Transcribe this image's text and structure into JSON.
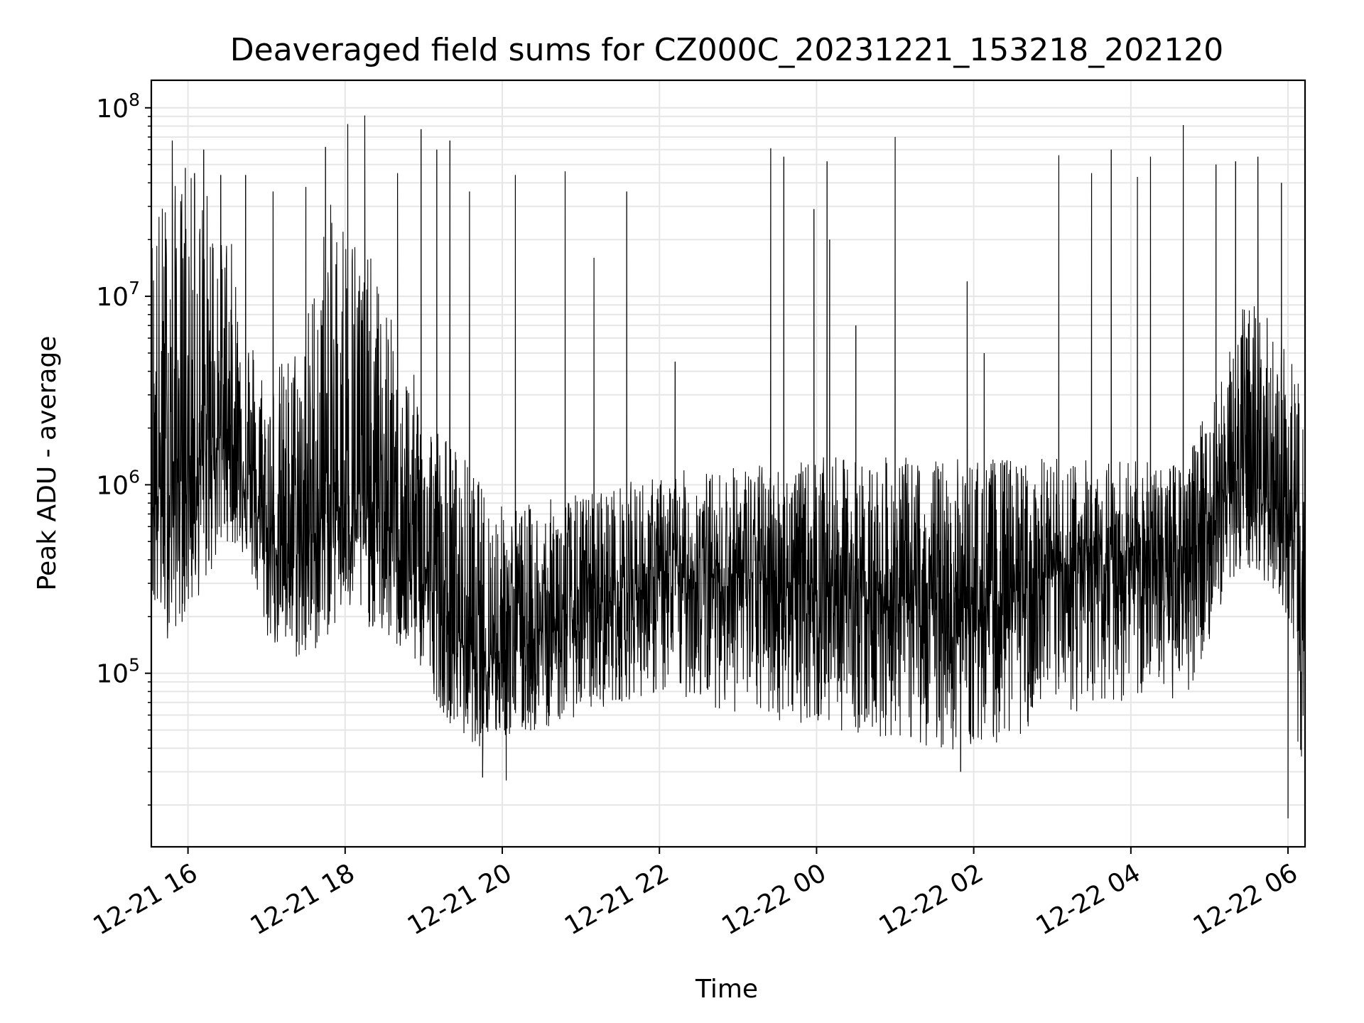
{
  "chart_data": {
    "type": "line",
    "title": "Deaveraged field sums for CZ000C_20231221_153218_202120",
    "xlabel": "Time",
    "ylabel": "Peak ADU - average",
    "yscale": "log",
    "ylim": [
      12000,
      140000000
    ],
    "xlim": [
      "2023-12-21 15:32",
      "2023-12-22 06:13"
    ],
    "grid": true,
    "line_color": "#000000",
    "grid_color": "#e6e6e6",
    "x_ticks": [
      "12-21 16",
      "12-21 18",
      "12-21 20",
      "12-21 22",
      "12-22 00",
      "12-22 02",
      "12-22 04",
      "12-22 06"
    ],
    "y_ticks": [
      {
        "base": "10",
        "exp": "5",
        "value": 100000
      },
      {
        "base": "10",
        "exp": "6",
        "value": 1000000
      },
      {
        "base": "10",
        "exp": "7",
        "value": 10000000
      },
      {
        "base": "10",
        "exp": "8",
        "value": 100000000
      }
    ],
    "series": [
      {
        "x": [
          "2023-12-21 15:32",
          "2023-12-21 15:45",
          "2023-12-21 16:00",
          "2023-12-21 16:15",
          "2023-12-21 16:30",
          "2023-12-21 16:45",
          "2023-12-21 17:00",
          "2023-12-21 17:15",
          "2023-12-21 17:30",
          "2023-12-21 17:45",
          "2023-12-21 18:00",
          "2023-12-21 18:15",
          "2023-12-21 18:30",
          "2023-12-21 18:45",
          "2023-12-21 19:00",
          "2023-12-21 19:15",
          "2023-12-21 19:30",
          "2023-12-21 19:45",
          "2023-12-21 20:00",
          "2023-12-21 20:15",
          "2023-12-21 20:30",
          "2023-12-21 20:45",
          "2023-12-21 21:00",
          "2023-12-21 21:15",
          "2023-12-21 21:30",
          "2023-12-21 21:45",
          "2023-12-21 22:00",
          "2023-12-21 22:15",
          "2023-12-21 22:30",
          "2023-12-21 22:45",
          "2023-12-21 23:00",
          "2023-12-21 23:15",
          "2023-12-21 23:30",
          "2023-12-21 23:45",
          "2023-12-22 00:00",
          "2023-12-22 00:15",
          "2023-12-22 00:30",
          "2023-12-22 00:45",
          "2023-12-22 01:00",
          "2023-12-22 01:15",
          "2023-12-22 01:30",
          "2023-12-22 01:45",
          "2023-12-22 02:00",
          "2023-12-22 02:15",
          "2023-12-22 02:30",
          "2023-12-22 02:45",
          "2023-12-22 03:00",
          "2023-12-22 03:15",
          "2023-12-22 03:30",
          "2023-12-22 03:45",
          "2023-12-22 04:00",
          "2023-12-22 04:15",
          "2023-12-22 04:30",
          "2023-12-22 04:45",
          "2023-12-22 05:00",
          "2023-12-22 05:15",
          "2023-12-22 05:30",
          "2023-12-22 05:45",
          "2023-12-22 06:00",
          "2023-12-22 06:10"
        ],
        "median": [
          900000,
          1000000,
          1100000,
          1500000,
          2000000,
          1000000,
          500000,
          450000,
          450000,
          700000,
          800000,
          700000,
          600000,
          500000,
          350000,
          200000,
          150000,
          130000,
          140000,
          150000,
          160000,
          180000,
          200000,
          230000,
          260000,
          280000,
          300000,
          320000,
          320000,
          330000,
          330000,
          320000,
          310000,
          300000,
          290000,
          280000,
          270000,
          260000,
          250000,
          240000,
          230000,
          220000,
          220000,
          230000,
          250000,
          280000,
          320000,
          350000,
          380000,
          400000,
          420000,
          400000,
          400000,
          450000,
          700000,
          900000,
          1000000,
          900000,
          700000,
          300000
        ],
        "low": [
          200000,
          150000,
          200000,
          300000,
          500000,
          400000,
          150000,
          120000,
          110000,
          150000,
          200000,
          180000,
          150000,
          120000,
          100000,
          60000,
          45000,
          40000,
          45000,
          45000,
          50000,
          55000,
          60000,
          65000,
          70000,
          75000,
          75000,
          75000,
          70000,
          65000,
          60000,
          58000,
          55000,
          55000,
          52000,
          50000,
          48000,
          45000,
          45000,
          42000,
          40000,
          38000,
          40000,
          42000,
          45000,
          50000,
          55000,
          60000,
          65000,
          70000,
          70000,
          70000,
          70000,
          80000,
          150000,
          300000,
          350000,
          300000,
          200000,
          20000
        ],
        "high": [
          30000000,
          40000000,
          45000000,
          40000000,
          25000000,
          8000000,
          4000000,
          5000000,
          8000000,
          30000000,
          35000000,
          20000000,
          10000000,
          5000000,
          3000000,
          2000000,
          1500000,
          1000000,
          800000,
          800000,
          800000,
          900000,
          900000,
          1000000,
          1000000,
          1100000,
          1100000,
          1200000,
          1200000,
          1200000,
          1300000,
          1300000,
          1300000,
          1300000,
          1400000,
          1400000,
          1400000,
          1400000,
          1400000,
          1400000,
          1400000,
          1400000,
          1400000,
          1400000,
          1400000,
          1400000,
          1400000,
          1400000,
          1400000,
          1400000,
          1400000,
          1300000,
          1300000,
          1500000,
          3000000,
          6000000,
          10000000,
          8000000,
          6000000,
          3000000
        ],
        "spikes": [
          [
            "2023-12-21 15:48",
            67000000
          ],
          [
            "2023-12-21 15:58",
            48000000
          ],
          [
            "2023-12-21 16:05",
            45000000
          ],
          [
            "2023-12-21 16:12",
            60000000
          ],
          [
            "2023-12-21 16:25",
            44000000
          ],
          [
            "2023-12-21 16:44",
            44000000
          ],
          [
            "2023-12-21 17:05",
            36000000
          ],
          [
            "2023-12-21 17:30",
            38000000
          ],
          [
            "2023-12-21 17:45",
            62000000
          ],
          [
            "2023-12-21 18:02",
            82000000
          ],
          [
            "2023-12-21 18:15",
            91000000
          ],
          [
            "2023-12-21 18:40",
            45000000
          ],
          [
            "2023-12-21 18:58",
            77000000
          ],
          [
            "2023-12-21 19:10",
            60000000
          ],
          [
            "2023-12-21 19:20",
            67000000
          ],
          [
            "2023-12-21 19:35",
            36000000
          ],
          [
            "2023-12-21 20:10",
            44000000
          ],
          [
            "2023-12-21 20:48",
            46000000
          ],
          [
            "2023-12-21 21:10",
            16000000
          ],
          [
            "2023-12-21 21:35",
            36000000
          ],
          [
            "2023-12-21 22:12",
            4500000
          ],
          [
            "2023-12-21 23:25",
            61000000
          ],
          [
            "2023-12-21 23:35",
            55000000
          ],
          [
            "2023-12-21 23:58",
            29000000
          ],
          [
            "2023-12-22 00:08",
            52000000
          ],
          [
            "2023-12-22 00:10",
            20000000
          ],
          [
            "2023-12-22 00:30",
            7000000
          ],
          [
            "2023-12-22 01:00",
            70000000
          ],
          [
            "2023-12-22 01:55",
            12000000
          ],
          [
            "2023-12-22 02:08",
            5000000
          ],
          [
            "2023-12-22 03:05",
            56000000
          ],
          [
            "2023-12-22 03:30",
            45000000
          ],
          [
            "2023-12-22 03:45",
            60000000
          ],
          [
            "2023-12-22 04:05",
            43000000
          ],
          [
            "2023-12-22 04:15",
            55000000
          ],
          [
            "2023-12-22 04:40",
            81000000
          ],
          [
            "2023-12-22 05:05",
            50000000
          ],
          [
            "2023-12-22 05:20",
            52000000
          ],
          [
            "2023-12-22 05:37",
            55000000
          ],
          [
            "2023-12-22 05:55",
            40000000
          ]
        ],
        "dips": [
          [
            "2023-12-21 19:45",
            28000
          ],
          [
            "2023-12-21 20:03",
            27000
          ],
          [
            "2023-12-22 01:50",
            30000
          ],
          [
            "2023-12-22 06:00",
            17000
          ]
        ]
      }
    ]
  }
}
